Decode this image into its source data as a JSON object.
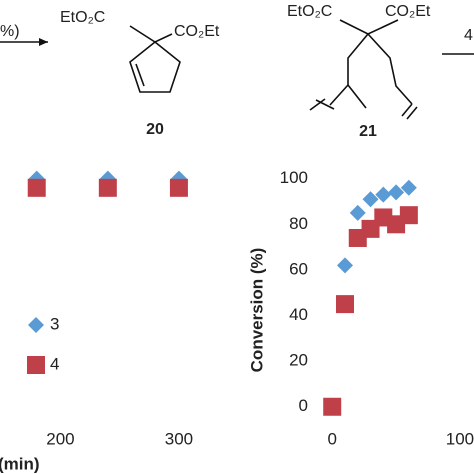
{
  "scheme": {
    "conditions": "%)",
    "product_ester_left": "EtO₂C",
    "product_ester_right": "CO₂Et",
    "product_label": "20",
    "reactant_ester_left": "EtO₂C",
    "reactant_ester_right": "CO₂Et",
    "reactant_label": "21",
    "next_conditions": "4"
  },
  "chart_data": [
    {
      "type": "scatter",
      "xlabel": "(min)",
      "xlim": [
        149,
        322
      ],
      "ylim": [
        -8,
        106
      ],
      "xticks": [
        200,
        300
      ],
      "series": [
        {
          "name": "3",
          "color": "#5b9bd5",
          "marker": "diamond",
          "x": [
            180,
            240,
            300
          ],
          "values": [
            100,
            100,
            100
          ]
        },
        {
          "name": "4",
          "color": "#c0404a",
          "marker": "square",
          "x": [
            180,
            240,
            300
          ],
          "values": [
            96,
            96,
            96
          ]
        }
      ],
      "legend": "left"
    },
    {
      "type": "scatter",
      "ylabel": "Conversion (%)",
      "xlim": [
        -8,
        111
      ],
      "ylim": [
        -8,
        106
      ],
      "xticks": [
        0,
        100
      ],
      "yticks": [
        0,
        20,
        40,
        60,
        80,
        100
      ],
      "series": [
        {
          "color": "#5b9bd5",
          "marker": "diamond",
          "x": [
            10,
            20,
            30,
            40,
            50,
            60
          ],
          "values": [
            62,
            85,
            91,
            93,
            94,
            96
          ]
        },
        {
          "color": "#c0404a",
          "marker": "square",
          "x": [
            0,
            10,
            20,
            30,
            40,
            50,
            60
          ],
          "values": [
            0,
            45,
            74,
            78,
            83,
            80,
            84
          ]
        }
      ]
    }
  ]
}
